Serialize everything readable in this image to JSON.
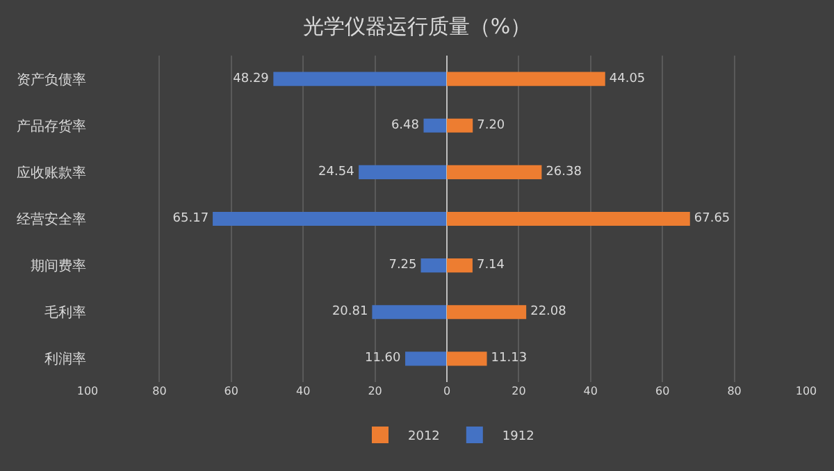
{
  "chart_data": [
    {
      "type": "bar",
      "orientation": "horizontal",
      "title": "光学仪器运行质量（%）",
      "categories": [
        "资产负债率",
        "产品存货率",
        "应收账款率",
        "经营安全率",
        "期间费率",
        "毛利率",
        "利润率"
      ],
      "series": [
        {
          "name": "1912",
          "color": "#4472c4",
          "values": [
            48.29,
            6.48,
            24.54,
            65.17,
            7.25,
            20.81,
            11.6
          ],
          "value_labels": [
            "48.29",
            "6.48",
            "24.54",
            "65.17",
            "7.25",
            "20.81",
            "11.60"
          ]
        }
      ],
      "xlim": [
        100,
        0
      ],
      "xticks": [
        100,
        80,
        60,
        40,
        20
      ],
      "grid": "x",
      "legend": "bottom"
    },
    {
      "type": "bar",
      "orientation": "horizontal",
      "categories": [
        "资产负债率",
        "产品存货率",
        "应收账款率",
        "经营安全率",
        "期间费率",
        "毛利率",
        "利润率"
      ],
      "series": [
        {
          "name": "2012",
          "color": "#ed7d31",
          "values": [
            44.05,
            7.2,
            26.38,
            67.65,
            7.14,
            22.08,
            11.13
          ],
          "value_labels": [
            "44.05",
            "7.20",
            "26.38",
            "67.65",
            "7.14",
            "22.08",
            "11.13"
          ]
        }
      ],
      "xlim": [
        0,
        100
      ],
      "xticks": [
        0,
        20,
        40,
        60,
        80,
        100
      ],
      "grid": "x",
      "legend": "bottom",
      "tick_labels": "x"
    }
  ]
}
